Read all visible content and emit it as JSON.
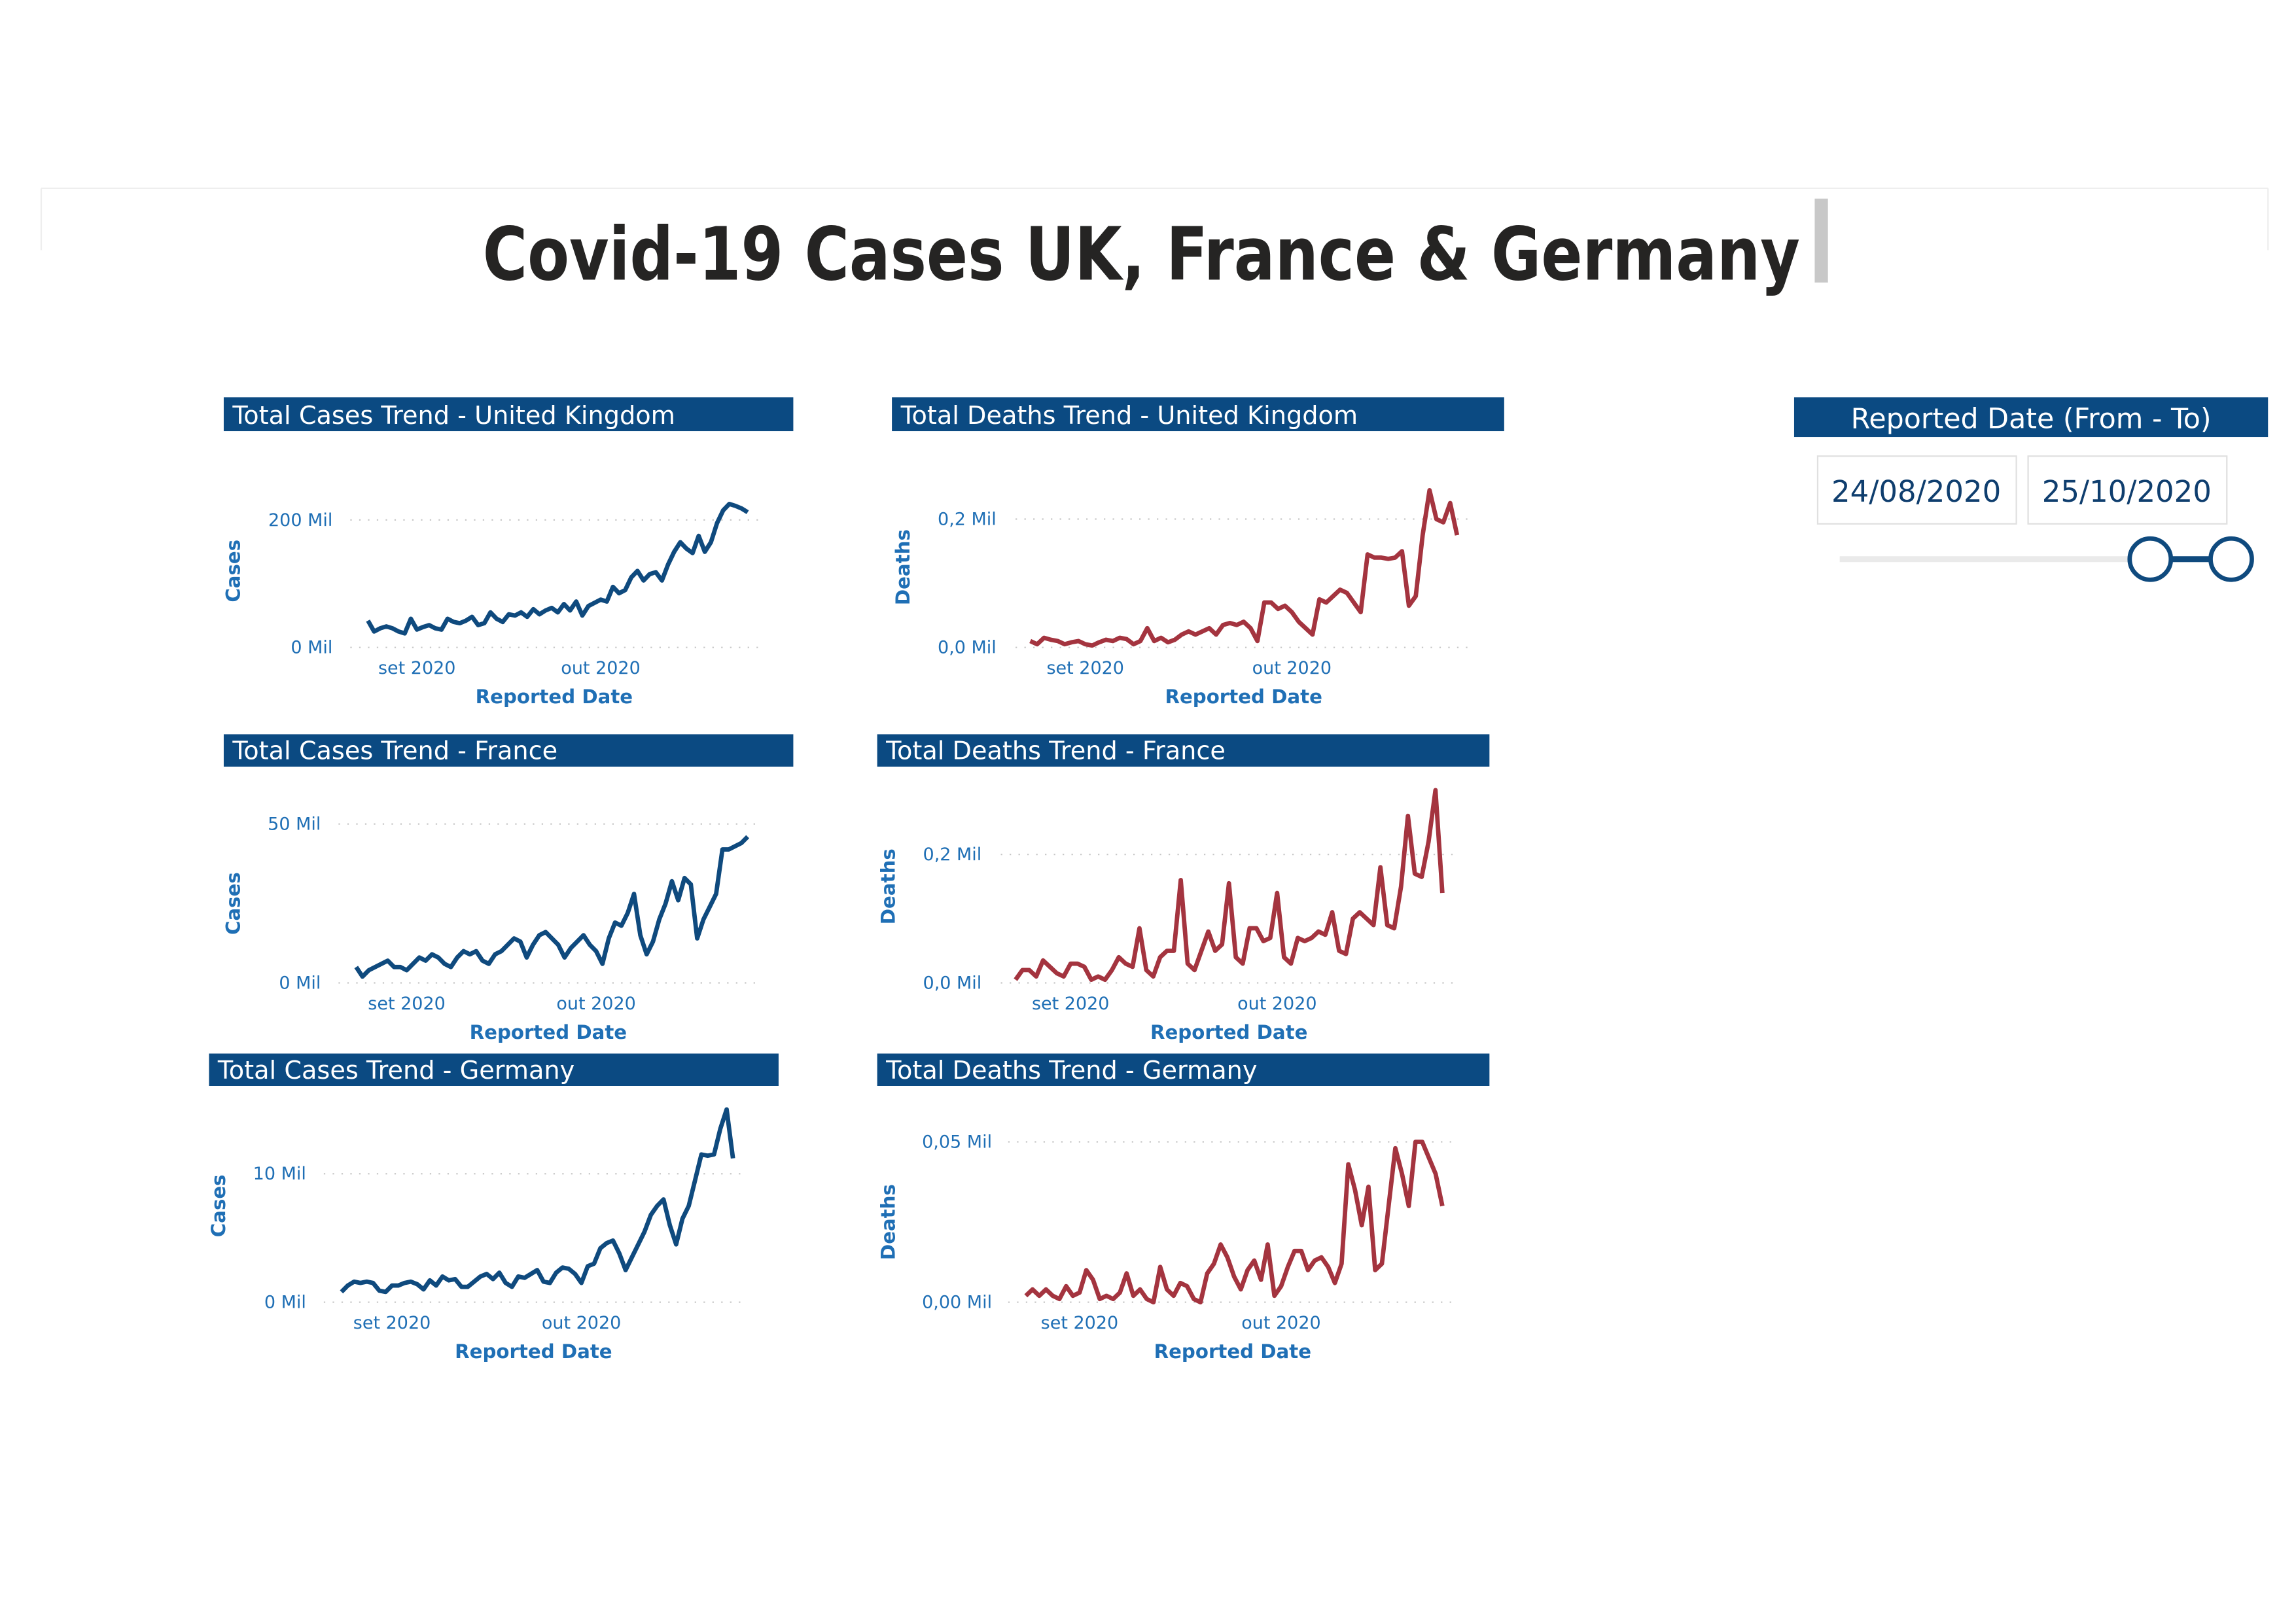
{
  "title": "Covid-19 Cases UK, France & Germany",
  "slicer": {
    "title": "Reported Date (From - To)",
    "from": "24/08/2020",
    "to": "25/10/2020"
  },
  "chart_data": [
    {
      "type": "line",
      "title": "Total Cases Trend - United Kingdom",
      "x_label": "Reported Date",
      "y_label": "Cases",
      "color": "#0f4a7e",
      "grid": true,
      "categories": [
        null,
        null,
        null,
        null,
        null,
        null,
        null,
        null,
        "set 2020",
        null,
        null,
        null,
        null,
        null,
        null,
        null,
        null,
        null,
        null,
        null,
        null,
        null,
        null,
        null,
        null,
        null,
        null,
        null,
        null,
        null,
        null,
        null,
        null,
        null,
        null,
        null,
        null,
        null,
        "out 2020",
        null,
        null,
        null,
        null,
        null,
        null,
        null,
        null,
        null,
        null,
        null,
        null,
        null,
        null,
        null,
        null,
        null,
        null,
        null,
        null,
        null,
        null,
        null,
        null
      ],
      "values": [
        42,
        25,
        30,
        33,
        30,
        25,
        22,
        45,
        28,
        32,
        35,
        30,
        28,
        45,
        40,
        38,
        42,
        48,
        35,
        38,
        55,
        45,
        40,
        52,
        50,
        55,
        48,
        60,
        52,
        58,
        62,
        55,
        68,
        58,
        72,
        50,
        65,
        70,
        75,
        72,
        95,
        85,
        90,
        110,
        120,
        105,
        115,
        118,
        105,
        130,
        150,
        165,
        155,
        148,
        175,
        150,
        165,
        195,
        215,
        225,
        222,
        218,
        212
      ],
      "ylim": [
        0,
        240
      ],
      "yticks": [
        {
          "value": 0,
          "label": "0 Mil"
        },
        {
          "value": 200,
          "label": "200 Mil"
        }
      ]
    },
    {
      "type": "line",
      "title": "Total Deaths Trend - United Kingdom",
      "x_label": "Reported Date",
      "y_label": "Deaths",
      "color": "#a4343f",
      "grid": true,
      "categories": [
        null,
        null,
        null,
        null,
        null,
        null,
        null,
        null,
        "set 2020",
        null,
        null,
        null,
        null,
        null,
        null,
        null,
        null,
        null,
        null,
        null,
        null,
        null,
        null,
        null,
        null,
        null,
        null,
        null,
        null,
        null,
        null,
        null,
        null,
        null,
        null,
        null,
        null,
        null,
        "out 2020",
        null,
        null,
        null,
        null,
        null,
        null,
        null,
        null,
        null,
        null,
        null,
        null,
        null,
        null,
        null,
        null,
        null,
        null,
        null,
        null,
        null,
        null,
        null,
        null
      ],
      "values": [
        0.01,
        0.005,
        0.015,
        0.012,
        0.01,
        0.005,
        0.008,
        0.01,
        0.005,
        0.003,
        0.008,
        0.012,
        0.01,
        0.015,
        0.013,
        0.005,
        0.01,
        0.03,
        0.01,
        0.015,
        0.008,
        0.012,
        0.02,
        0.025,
        0.02,
        0.025,
        0.03,
        0.02,
        0.035,
        0.038,
        0.035,
        0.04,
        0.03,
        0.01,
        0.07,
        0.07,
        0.06,
        0.065,
        0.055,
        0.04,
        0.03,
        0.02,
        0.075,
        0.07,
        0.08,
        0.09,
        0.085,
        0.07,
        0.055,
        0.145,
        0.14,
        0.14,
        0.138,
        0.14,
        0.15,
        0.065,
        0.08,
        0.175,
        0.245,
        0.2,
        0.195,
        0.225,
        0.175
      ],
      "ylim": [
        0,
        0.25
      ],
      "yticks": [
        {
          "value": 0,
          "label": "0,0 Mil"
        },
        {
          "value": 0.2,
          "label": "0,2 Mil"
        }
      ]
    },
    {
      "type": "line",
      "title": "Total Cases Trend - France",
      "x_label": "Reported Date",
      "y_label": "Cases",
      "color": "#0f4a7e",
      "grid": true,
      "categories": [
        null,
        null,
        null,
        null,
        null,
        null,
        null,
        null,
        "set 2020",
        null,
        null,
        null,
        null,
        null,
        null,
        null,
        null,
        null,
        null,
        null,
        null,
        null,
        null,
        null,
        null,
        null,
        null,
        null,
        null,
        null,
        null,
        null,
        null,
        null,
        null,
        null,
        null,
        null,
        "out 2020",
        null,
        null,
        null,
        null,
        null,
        null,
        null,
        null,
        null,
        null,
        null,
        null,
        null,
        null,
        null,
        null,
        null,
        null,
        null,
        null,
        null,
        null,
        null,
        null
      ],
      "values": [
        5,
        2,
        4,
        5,
        6,
        7,
        5,
        5,
        4,
        6,
        8,
        7,
        9,
        8,
        6,
        5,
        8,
        10,
        9,
        10,
        7,
        6,
        9,
        10,
        12,
        14,
        13,
        8,
        12,
        15,
        16,
        14,
        12,
        8,
        11,
        13,
        15,
        12,
        10,
        6,
        14,
        19,
        18,
        22,
        28,
        15,
        9,
        13,
        20,
        25,
        32,
        26,
        33,
        31,
        14,
        20,
        24,
        28,
        42,
        42,
        43,
        44,
        46
      ],
      "ylim": [
        0,
        50
      ],
      "yticks": [
        {
          "value": 0,
          "label": "0 Mil"
        },
        {
          "value": 50,
          "label": "50 Mil"
        }
      ]
    },
    {
      "type": "line",
      "title": "Total Deaths Trend - France",
      "x_label": "Reported Date",
      "y_label": "Deaths",
      "color": "#a4343f",
      "grid": true,
      "categories": [
        null,
        null,
        null,
        null,
        null,
        null,
        null,
        null,
        "set 2020",
        null,
        null,
        null,
        null,
        null,
        null,
        null,
        null,
        null,
        null,
        null,
        null,
        null,
        null,
        null,
        null,
        null,
        null,
        null,
        null,
        null,
        null,
        null,
        null,
        null,
        null,
        null,
        null,
        null,
        "out 2020",
        null,
        null,
        null,
        null,
        null,
        null,
        null,
        null,
        null,
        null,
        null,
        null,
        null,
        null,
        null,
        null,
        null,
        null,
        null,
        null,
        null,
        null,
        null,
        null
      ],
      "values": [
        0.005,
        0.02,
        0.02,
        0.01,
        0.035,
        0.025,
        0.015,
        0.01,
        0.03,
        0.03,
        0.025,
        0.005,
        0.01,
        0.005,
        0.02,
        0.04,
        0.03,
        0.025,
        0.085,
        0.02,
        0.01,
        0.04,
        0.05,
        0.05,
        0.16,
        0.03,
        0.02,
        0.05,
        0.08,
        0.05,
        0.06,
        0.155,
        0.04,
        0.03,
        0.085,
        0.085,
        0.065,
        0.07,
        0.14,
        0.04,
        0.03,
        0.07,
        0.065,
        0.07,
        0.08,
        0.075,
        0.11,
        0.05,
        0.045,
        0.1,
        0.11,
        0.1,
        0.09,
        0.18,
        0.09,
        0.085,
        0.15,
        0.26,
        0.17,
        0.165,
        0.22,
        0.3,
        0.14
      ],
      "ylim": [
        0,
        0.3
      ],
      "yticks": [
        {
          "value": 0,
          "label": "0,0 Mil"
        },
        {
          "value": 0.2,
          "label": "0,2 Mil"
        }
      ]
    },
    {
      "type": "line",
      "title": "Total Cases Trend - Germany",
      "x_label": "Reported Date",
      "y_label": "Cases",
      "color": "#0f4a7e",
      "grid": true,
      "categories": [
        null,
        null,
        null,
        null,
        null,
        null,
        null,
        null,
        "set 2020",
        null,
        null,
        null,
        null,
        null,
        null,
        null,
        null,
        null,
        null,
        null,
        null,
        null,
        null,
        null,
        null,
        null,
        null,
        null,
        null,
        null,
        null,
        null,
        null,
        null,
        null,
        null,
        null,
        null,
        "out 2020",
        null,
        null,
        null,
        null,
        null,
        null,
        null,
        null,
        null,
        null,
        null,
        null,
        null,
        null,
        null,
        null,
        null,
        null,
        null,
        null,
        null,
        null,
        null,
        null
      ],
      "values": [
        0.8,
        1.3,
        1.6,
        1.5,
        1.6,
        1.5,
        0.9,
        0.8,
        1.3,
        1.3,
        1.5,
        1.6,
        1.4,
        1.0,
        1.7,
        1.3,
        2.0,
        1.7,
        1.8,
        1.2,
        1.2,
        1.6,
        2.0,
        2.2,
        1.8,
        2.3,
        1.5,
        1.2,
        2.0,
        1.9,
        2.2,
        2.5,
        1.6,
        1.5,
        2.3,
        2.7,
        2.6,
        2.2,
        1.5,
        2.8,
        3.0,
        4.2,
        4.6,
        4.8,
        3.8,
        2.5,
        3.5,
        4.5,
        5.5,
        6.8,
        7.5,
        8.0,
        6.0,
        4.5,
        6.5,
        7.5,
        9.5,
        11.5,
        11.4,
        11.5,
        13.5,
        15.0,
        11.2
      ],
      "ylim": [
        0,
        15
      ],
      "yticks": [
        {
          "value": 0,
          "label": "0 Mil"
        },
        {
          "value": 10,
          "label": "10 Mil"
        }
      ]
    },
    {
      "type": "line",
      "title": "Total Deaths Trend - Germany",
      "x_label": "Reported Date",
      "y_label": "Deaths",
      "color": "#a4343f",
      "grid": true,
      "categories": [
        null,
        null,
        null,
        null,
        null,
        null,
        null,
        null,
        "set 2020",
        null,
        null,
        null,
        null,
        null,
        null,
        null,
        null,
        null,
        null,
        null,
        null,
        null,
        null,
        null,
        null,
        null,
        null,
        null,
        null,
        null,
        null,
        null,
        null,
        null,
        null,
        null,
        null,
        null,
        "out 2020",
        null,
        null,
        null,
        null,
        null,
        null,
        null,
        null,
        null,
        null,
        null,
        null,
        null,
        null,
        null,
        null,
        null,
        null,
        null,
        null,
        null,
        null,
        null,
        null
      ],
      "values": [
        0.002,
        0.004,
        0.002,
        0.004,
        0.002,
        0.001,
        0.005,
        0.002,
        0.003,
        0.01,
        0.007,
        0.001,
        0.002,
        0.001,
        0.003,
        0.009,
        0.002,
        0.004,
        0.001,
        0.0,
        0.011,
        0.004,
        0.002,
        0.006,
        0.005,
        0.001,
        0.0,
        0.009,
        0.012,
        0.018,
        0.014,
        0.008,
        0.004,
        0.01,
        0.013,
        0.007,
        0.018,
        0.002,
        0.005,
        0.011,
        0.016,
        0.016,
        0.01,
        0.013,
        0.014,
        0.011,
        0.006,
        0.012,
        0.043,
        0.035,
        0.024,
        0.036,
        0.01,
        0.012,
        0.03,
        0.048,
        0.04,
        0.03,
        0.05,
        0.05,
        0.045,
        0.04,
        0.03
      ],
      "ylim": [
        0,
        0.05
      ],
      "yticks": [
        {
          "value": 0,
          "label": "0,00 Mil"
        },
        {
          "value": 0.05,
          "label": "0,05 Mil"
        }
      ]
    }
  ]
}
